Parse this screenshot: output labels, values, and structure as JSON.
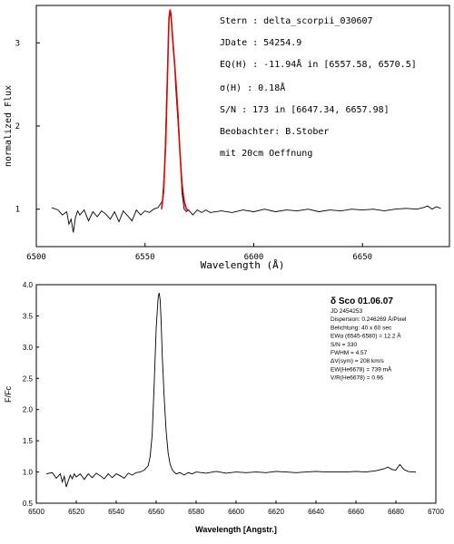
{
  "colors": {
    "spectrum": "#000000",
    "fit": "#e00000",
    "frame": "#000000",
    "grid": "#c8c8c8"
  },
  "chart_data": [
    {
      "type": "line",
      "title": "",
      "xlabel": "Wavelength (Å)",
      "ylabel": "normalized Flux",
      "xlim": [
        6500,
        6690
      ],
      "ylim": [
        0.55,
        3.45
      ],
      "xticks": [
        "6500",
        "6550",
        "6600",
        "6650"
      ],
      "xtick_values": [
        6500,
        6550,
        6600,
        6650
      ],
      "yticks": [
        "1",
        "2",
        "3"
      ],
      "ytick_values": [
        1,
        2,
        3
      ],
      "grid": false,
      "series": [
        {
          "role": "spectrum",
          "x": [
            6507,
            6510,
            6512,
            6514,
            6515,
            6516,
            6517,
            6518,
            6519,
            6520,
            6522,
            6524,
            6526,
            6528,
            6530,
            6532,
            6534,
            6536,
            6538,
            6540,
            6542,
            6544,
            6546,
            6548,
            6550,
            6552,
            6554,
            6556,
            6558,
            6559,
            6560,
            6561,
            6561.5,
            6562,
            6562.5,
            6563,
            6563.5,
            6564,
            6564.5,
            6565,
            6566,
            6567,
            6568,
            6569,
            6570,
            6572,
            6574,
            6576,
            6578,
            6580,
            6585,
            6590,
            6595,
            6600,
            6605,
            6610,
            6615,
            6620,
            6625,
            6630,
            6635,
            6640,
            6645,
            6650,
            6655,
            6660,
            6665,
            6670,
            6675,
            6678,
            6680,
            6682,
            6684,
            6686
          ],
          "y": [
            1.02,
            0.99,
            0.93,
            0.97,
            0.82,
            0.88,
            0.72,
            0.9,
            0.98,
            0.93,
            0.99,
            0.86,
            0.97,
            0.91,
            0.98,
            0.94,
            0.88,
            0.97,
            0.85,
            0.98,
            0.92,
            0.86,
            0.99,
            0.93,
            0.98,
            0.96,
            1.0,
            1.02,
            1.1,
            1.5,
            2.4,
            3.3,
            3.4,
            3.35,
            3.1,
            2.9,
            2.8,
            2.5,
            2.3,
            2.1,
            1.7,
            1.2,
            1.0,
            0.97,
            0.99,
            0.93,
            0.99,
            0.96,
            0.99,
            0.96,
            0.98,
            0.96,
            0.99,
            0.97,
            1.0,
            0.97,
            0.99,
            0.98,
            1.0,
            0.97,
            0.99,
            0.98,
            1.0,
            0.99,
            1.0,
            0.98,
            1.0,
            1.01,
            1.0,
            1.02,
            1.04,
            1.0,
            1.03,
            1.01
          ]
        },
        {
          "role": "fit",
          "x": [
            6557.6,
            6558.5,
            6559.5,
            6560.5,
            6561,
            6561.5,
            6562,
            6563,
            6564,
            6565,
            6566,
            6567,
            6568,
            6569,
            6570.5
          ],
          "y": [
            1.0,
            1.2,
            1.8,
            2.8,
            3.3,
            3.4,
            3.3,
            2.95,
            2.6,
            2.2,
            1.7,
            1.3,
            1.1,
            1.0,
            0.98
          ]
        }
      ],
      "annotations": [
        "Stern   : delta_scorpii_030607",
        "JDate   : 54254.9",
        "EQ(H) : -11.94Å in [6557.58, 6570.5]",
        "σ(H)   : 0.18Å",
        "S/N     : 173 in [6647.34, 6657.98]",
        "Beobachter: B.Stober",
        "mit 20cm Oeffnung"
      ]
    },
    {
      "type": "line",
      "title": "δ Sco 01.06.07",
      "xlabel": "Wavelength [Angstr.]",
      "ylabel": "F/Fc",
      "xlim": [
        6500,
        6700
      ],
      "ylim": [
        0.5,
        4.0
      ],
      "xticks": [
        "6500",
        "6520",
        "6540",
        "6560",
        "6580",
        "6600",
        "6620",
        "6640",
        "6660",
        "6680",
        "6700"
      ],
      "xtick_values": [
        6500,
        6520,
        6540,
        6560,
        6580,
        6600,
        6620,
        6640,
        6660,
        6680,
        6700
      ],
      "yticks": [
        "0.5",
        "1.0",
        "1.5",
        "2.0",
        "2.5",
        "3.0",
        "3.5",
        "4.0"
      ],
      "ytick_values": [
        0.5,
        1.0,
        1.5,
        2.0,
        2.5,
        3.0,
        3.5,
        4.0
      ],
      "grid": false,
      "series": [
        {
          "role": "spectrum",
          "x": [
            6505,
            6508,
            6510,
            6512,
            6513,
            6514,
            6515,
            6516,
            6517,
            6518,
            6519,
            6520,
            6522,
            6524,
            6526,
            6528,
            6530,
            6532,
            6534,
            6536,
            6538,
            6540,
            6542,
            6544,
            6546,
            6548,
            6550,
            6552,
            6554,
            6556,
            6557,
            6558,
            6559,
            6560,
            6561,
            6561.5,
            6562,
            6562.5,
            6563,
            6564,
            6565,
            6566,
            6567,
            6568,
            6569,
            6570,
            6572,
            6574,
            6576,
            6578,
            6580,
            6585,
            6590,
            6595,
            6600,
            6605,
            6610,
            6615,
            6620,
            6625,
            6630,
            6635,
            6640,
            6645,
            6650,
            6655,
            6660,
            6665,
            6670,
            6674,
            6676,
            6678,
            6680,
            6681,
            6682,
            6684,
            6686,
            6688,
            6690
          ],
          "y": [
            0.97,
            0.99,
            0.9,
            0.97,
            0.84,
            0.93,
            0.76,
            0.86,
            0.95,
            0.89,
            0.97,
            0.92,
            0.97,
            0.88,
            0.97,
            0.91,
            0.98,
            0.94,
            0.89,
            0.97,
            0.91,
            0.97,
            0.94,
            0.9,
            0.98,
            0.95,
            0.99,
            1.0,
            1.03,
            1.1,
            1.25,
            1.6,
            2.4,
            3.3,
            3.8,
            3.87,
            3.75,
            3.4,
            2.9,
            2.2,
            1.65,
            1.3,
            1.12,
            1.04,
            1.0,
            0.97,
            0.99,
            0.95,
            0.99,
            0.97,
            1.0,
            0.98,
            1.01,
            0.98,
            1.0,
            0.99,
            1.0,
            0.99,
            1.01,
            1.0,
            0.99,
            1.0,
            1.01,
            1.0,
            1.0,
            1.0,
            1.01,
            1.0,
            1.02,
            1.05,
            1.08,
            1.04,
            1.03,
            1.08,
            1.12,
            1.04,
            1.01,
            1.0,
            1.0
          ]
        }
      ],
      "info": {
        "title": "δ Sco 01.06.07",
        "lines": [
          "JD 2454253",
          "Dispersion: 0.246269 Å/Pixel",
          "Belichtung: 40 x 60 sec",
          "EWα (6545-6580) = 12.2 Å",
          "S/N       = 330",
          "FWHM      = 4.57",
          "ΔV(sym)   = 208 km/s",
          "EW(He6678) = 739 mÅ",
          "V/R(He6678) = 0.96"
        ]
      }
    }
  ]
}
